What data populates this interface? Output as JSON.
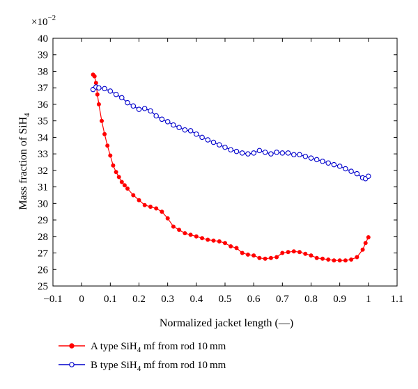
{
  "chart_data": {
    "type": "line",
    "title": "",
    "xlabel": "Normalized jacket length (—)",
    "ylabel_main": "Mass fraction of SiH",
    "ylabel_sub": "4",
    "y_multiplier_base": "×10",
    "y_multiplier_exp": "−2",
    "xlim": [
      -0.1,
      1.1
    ],
    "ylim": [
      25,
      40
    ],
    "x_ticks": [
      -0.1,
      0,
      0.1,
      0.2,
      0.3,
      0.4,
      0.5,
      0.6,
      0.7,
      0.8,
      0.9,
      1,
      1.1
    ],
    "x_tick_labels": [
      "−0.1",
      "0",
      "0.1",
      "0.2",
      "0.3",
      "0.4",
      "0.5",
      "0.6",
      "0.7",
      "0.8",
      "0.9",
      "1",
      "1.1"
    ],
    "y_ticks": [
      25,
      26,
      27,
      28,
      29,
      30,
      31,
      32,
      33,
      34,
      35,
      36,
      37,
      38,
      39,
      40
    ],
    "y_tick_labels": [
      "25",
      "26",
      "27",
      "28",
      "29",
      "30",
      "31",
      "32",
      "33",
      "34",
      "35",
      "36",
      "37",
      "38",
      "39",
      "40"
    ],
    "grid": false,
    "legend_position": "below-left",
    "series": [
      {
        "name": "A type SiH4 mf from rod 10 mm",
        "legend_pre": "A type SiH",
        "legend_sub": "4",
        "legend_post": " mf from rod 10 mm",
        "color": "#ff0000",
        "marker": "filled-circle",
        "x": [
          0.04,
          0.045,
          0.05,
          0.055,
          0.06,
          0.07,
          0.08,
          0.09,
          0.1,
          0.11,
          0.12,
          0.13,
          0.14,
          0.15,
          0.16,
          0.18,
          0.2,
          0.22,
          0.24,
          0.26,
          0.28,
          0.3,
          0.32,
          0.34,
          0.36,
          0.38,
          0.4,
          0.42,
          0.44,
          0.46,
          0.48,
          0.5,
          0.52,
          0.54,
          0.56,
          0.58,
          0.6,
          0.62,
          0.64,
          0.66,
          0.68,
          0.7,
          0.72,
          0.74,
          0.76,
          0.78,
          0.8,
          0.82,
          0.84,
          0.86,
          0.88,
          0.9,
          0.92,
          0.94,
          0.96,
          0.98,
          0.99,
          1.0
        ],
        "y": [
          37.8,
          37.7,
          37.3,
          36.6,
          36.0,
          35.0,
          34.2,
          33.5,
          32.9,
          32.3,
          31.9,
          31.6,
          31.3,
          31.1,
          30.9,
          30.5,
          30.2,
          29.9,
          29.8,
          29.7,
          29.5,
          29.1,
          28.6,
          28.4,
          28.2,
          28.1,
          28.0,
          27.9,
          27.8,
          27.75,
          27.7,
          27.6,
          27.4,
          27.3,
          27.0,
          26.9,
          26.85,
          26.7,
          26.65,
          26.7,
          26.75,
          27.0,
          27.05,
          27.1,
          27.05,
          26.95,
          26.85,
          26.7,
          26.65,
          26.6,
          26.55,
          26.55,
          26.55,
          26.6,
          26.75,
          27.2,
          27.6,
          27.95
        ]
      },
      {
        "name": "B type SiH4 mf from rod 10 mm",
        "legend_pre": "B type SiH",
        "legend_sub": "4",
        "legend_post": " mf from rod 10 mm",
        "color": "#0000cc",
        "marker": "open-circle",
        "x": [
          0.04,
          0.05,
          0.06,
          0.08,
          0.1,
          0.12,
          0.14,
          0.16,
          0.18,
          0.2,
          0.22,
          0.24,
          0.26,
          0.28,
          0.3,
          0.32,
          0.34,
          0.36,
          0.38,
          0.4,
          0.42,
          0.44,
          0.46,
          0.48,
          0.5,
          0.52,
          0.54,
          0.56,
          0.58,
          0.6,
          0.62,
          0.64,
          0.66,
          0.68,
          0.7,
          0.72,
          0.74,
          0.76,
          0.78,
          0.8,
          0.82,
          0.84,
          0.86,
          0.88,
          0.9,
          0.92,
          0.94,
          0.96,
          0.98,
          0.99,
          1.0
        ],
        "y": [
          36.9,
          37.05,
          37.0,
          36.95,
          36.8,
          36.6,
          36.4,
          36.1,
          35.9,
          35.7,
          35.75,
          35.6,
          35.3,
          35.1,
          34.95,
          34.75,
          34.6,
          34.45,
          34.4,
          34.2,
          34.0,
          33.85,
          33.7,
          33.55,
          33.4,
          33.25,
          33.15,
          33.05,
          33.0,
          33.05,
          33.2,
          33.1,
          33.0,
          33.1,
          33.05,
          33.05,
          32.95,
          32.95,
          32.85,
          32.75,
          32.65,
          32.55,
          32.45,
          32.35,
          32.25,
          32.1,
          31.95,
          31.8,
          31.55,
          31.5,
          31.65
        ]
      }
    ]
  }
}
